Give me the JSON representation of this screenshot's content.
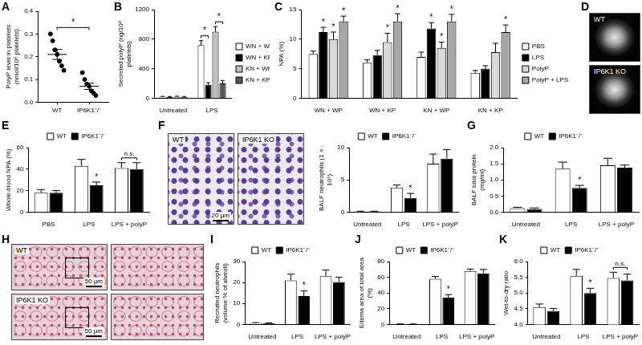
{
  "chart_data": [
    {
      "panel": "A",
      "type": "scatter",
      "y_label": "PolyP level in platelets (nmol/10⁸ platelets)",
      "categories": [
        "WT",
        "IP6K1⁻/⁻"
      ],
      "points": [
        [
          0.3,
          0.27,
          0.23,
          0.21,
          0.18,
          0.16,
          0.14
        ],
        [
          0.13,
          0.1,
          0.08,
          0.07,
          0.05,
          0.04,
          0.03
        ]
      ],
      "means": [
        0.21,
        0.07
      ],
      "errors": [
        0.022,
        0.014
      ],
      "color": "#000000",
      "ylim": [
        0,
        0.4
      ],
      "yticks": [
        {
          "value": 0,
          "label": "0.0"
        },
        0.1,
        0.2,
        0.3,
        0.4
      ],
      "grid": false,
      "brackets": [
        {
          "between": [
            "WT",
            "IP6K1⁻/⁻"
          ],
          "text": "*"
        }
      ]
    },
    {
      "panel": "B",
      "type": "bar",
      "y_label": "Secreted polyP (ng/10⁸ platelets)",
      "categories": [
        "Untreated",
        "LPS"
      ],
      "series": [
        {
          "name": "WN + WP",
          "color": "#ffffff",
          "values": [
            20,
            720
          ],
          "errors": [
            5,
            60
          ]
        },
        {
          "name": "WN + KP",
          "color": "#000000",
          "values": [
            18,
            180
          ],
          "errors": [
            5,
            30
          ]
        },
        {
          "name": "KN + WP",
          "color": "#bfbfbf",
          "values": [
            22,
            900
          ],
          "errors": [
            5,
            70
          ]
        },
        {
          "name": "KN + KP",
          "color": "#595959",
          "values": [
            18,
            200
          ],
          "errors": [
            5,
            40
          ]
        }
      ],
      "ylim": [
        0,
        1200
      ],
      "yticks": [
        0,
        400,
        800,
        1200
      ],
      "grid": false,
      "legend": "right",
      "brackets": [
        {
          "category": "LPS",
          "between": [
            "WN + WP",
            "WN + KP"
          ],
          "text": "*"
        },
        {
          "category": "LPS",
          "between": [
            "KN + WP",
            "KN + KP"
          ],
          "text": "*"
        }
      ]
    },
    {
      "panel": "C",
      "type": "bar",
      "y_label": "NPA (%)",
      "categories": [
        "WN + WP",
        "WN + KP",
        "KN + WP",
        "KN + KP"
      ],
      "series": [
        {
          "name": "PBS",
          "color": "#ffffff",
          "values": [
            7.5,
            6.0,
            7.0,
            4.3
          ],
          "errors": [
            0.5,
            0.5,
            0.8,
            0.4
          ]
        },
        {
          "name": "LPS",
          "color": "#000000",
          "values": [
            11.2,
            7.3,
            11.8,
            5.0
          ],
          "errors": [
            0.8,
            0.8,
            1.0,
            0.5
          ],
          "annotations": [
            "*",
            null,
            "*",
            null
          ]
        },
        {
          "name": "PolyP",
          "color": "#d9d9d9",
          "values": [
            10.0,
            9.5,
            8.5,
            7.8
          ],
          "errors": [
            1.2,
            1.5,
            1.0,
            1.5
          ],
          "annotations": [
            "*",
            "*",
            "*",
            null
          ]
        },
        {
          "name": "PolyP + LPS",
          "color": "#a6a6a6",
          "values": [
            13.0,
            13.0,
            13.0,
            11.2
          ],
          "errors": [
            0.9,
            1.3,
            1.2,
            1.2
          ],
          "annotations": [
            "*",
            "*",
            "*",
            "*"
          ]
        }
      ],
      "ylim": [
        0,
        15
      ],
      "yticks": [
        0,
        5,
        10,
        15
      ],
      "grid": false,
      "legend": "right"
    },
    {
      "panel": "E",
      "type": "bar",
      "y_label": "Whole-blood NPA (%)",
      "categories": [
        "PBS",
        "LPS",
        "LPS + polyP"
      ],
      "series": [
        {
          "name": "WT",
          "color": "#ffffff",
          "values": [
            18,
            43,
            41
          ],
          "errors": [
            3,
            6,
            5
          ]
        },
        {
          "name": "IP6K1⁻/⁻",
          "color": "#000000",
          "values": [
            18,
            25,
            40
          ],
          "errors": [
            2,
            3,
            6
          ],
          "annotations": [
            null,
            "*",
            null
          ]
        }
      ],
      "ylim": [
        0,
        60
      ],
      "yticks": [
        0,
        20,
        40,
        60
      ],
      "grid": false,
      "legend": "top",
      "brackets": [
        {
          "category": "LPS + polyP",
          "between": [
            "WT",
            "IP6K1⁻/⁻"
          ],
          "text": "n.s."
        }
      ]
    },
    {
      "type": "bar",
      "y_label": "BALF neutrophils (1 × 10⁵)",
      "categories": [
        "Untreated",
        "LPS",
        "LPS + polyP"
      ],
      "series": [
        {
          "name": "WT",
          "color": "#ffffff",
          "values": [
            0.1,
            3.8,
            7.5
          ],
          "errors": [
            0.05,
            0.4,
            1.5
          ]
        },
        {
          "name": "IP6K1⁻/⁻",
          "color": "#000000",
          "values": [
            0.1,
            2.2,
            8.3
          ],
          "errors": [
            0.05,
            0.7,
            1.4
          ],
          "annotations": [
            null,
            "*",
            null
          ]
        }
      ],
      "ylim": [
        0,
        10
      ],
      "yticks": [
        0,
        5,
        10
      ],
      "grid": false,
      "legend": "top"
    },
    {
      "type": "bar",
      "y_label": "BALF total protein (mg/ml)",
      "categories": [
        "Untreated",
        "LPS",
        "LPS + polyP"
      ],
      "series": [
        {
          "name": "WT",
          "color": "#ffffff",
          "values": [
            0.12,
            1.35,
            1.45
          ],
          "errors": [
            0.03,
            0.2,
            0.22
          ]
        },
        {
          "name": "IP6K1⁻/⁻",
          "color": "#000000",
          "values": [
            0.1,
            0.75,
            1.38
          ],
          "errors": [
            0.03,
            0.08,
            0.08
          ],
          "annotations": [
            null,
            "*",
            null
          ]
        }
      ],
      "ylim": [
        0,
        2
      ],
      "yticks": [
        {
          "value": 0,
          "label": "0.0"
        },
        0.5,
        {
          "value": 1,
          "label": "1.0"
        },
        1.5,
        {
          "value": 2,
          "label": "2.0"
        }
      ],
      "grid": false,
      "legend": "top",
      "panel": "G"
    },
    {
      "panel": "I",
      "type": "bar",
      "y_label": "Recruited neutrophils (volume % of alveoli)",
      "categories": [
        "Untreated",
        "LPS",
        "LPS + polyP"
      ],
      "series": [
        {
          "name": "WT",
          "color": "#ffffff",
          "values": [
            0.6,
            21,
            23
          ],
          "errors": [
            0.3,
            3,
            3
          ]
        },
        {
          "name": "IP6K1⁻/⁻",
          "color": "#000000",
          "values": [
            0.5,
            13.5,
            20.2
          ],
          "errors": [
            0.3,
            2.5,
            2.3
          ],
          "annotations": [
            null,
            "*",
            null
          ]
        }
      ],
      "ylim": [
        0,
        30
      ],
      "yticks": [
        0,
        10,
        20,
        30
      ],
      "grid": false,
      "legend": "top"
    },
    {
      "panel": "J",
      "type": "bar",
      "y_label": "Edema area of total area (%)",
      "categories": [
        "Untreated",
        "LPS",
        "LPS + polyP"
      ],
      "series": [
        {
          "name": "WT",
          "color": "#ffffff",
          "values": [
            0.5,
            58,
            68
          ],
          "errors": [
            0.2,
            3,
            2.5
          ]
        },
        {
          "name": "IP6K1⁻/⁻",
          "color": "#000000",
          "values": [
            0.4,
            34,
            65
          ],
          "errors": [
            0.2,
            4,
            5
          ],
          "annotations": [
            null,
            "*",
            null
          ]
        }
      ],
      "ylim": [
        0,
        80
      ],
      "yticks": [
        0,
        20,
        40,
        60,
        80
      ],
      "grid": false,
      "legend": "top"
    },
    {
      "panel": "K",
      "type": "bar",
      "y_label": "Wet-to-dry ratio",
      "categories": [
        "Untreated",
        "LPS",
        "LPS + polyP"
      ],
      "series": [
        {
          "name": "WT",
          "color": "#ffffff",
          "values": [
            4.55,
            5.55,
            5.48
          ],
          "errors": [
            0.1,
            0.2,
            0.18
          ]
        },
        {
          "name": "IP6K1⁻/⁻",
          "color": "#000000",
          "values": [
            4.43,
            5.0,
            5.4
          ],
          "errors": [
            0.08,
            0.15,
            0.2
          ],
          "annotations": [
            null,
            "*",
            null
          ]
        }
      ],
      "ylim": [
        4,
        6
      ],
      "yticks": [
        {
          "value": 4,
          "label": "4.0"
        },
        4.5,
        {
          "value": 5,
          "label": "5.0"
        },
        5.5,
        {
          "value": 6,
          "label": "6.0"
        }
      ],
      "grid": false,
      "legend": "top",
      "brackets": [
        {
          "category": "LPS + polyP",
          "between": [
            "WT",
            "IP6K1⁻/⁻"
          ],
          "text": "n.s."
        }
      ]
    }
  ],
  "images": [
    {
      "panel": "D",
      "labels": [
        "WT",
        "IP6K1 KO"
      ]
    },
    {
      "panel": "F",
      "labels": [
        "WT",
        "IP6K1 KO"
      ],
      "scale_bar": "20 μm"
    },
    {
      "panel": "H",
      "labels": [
        "WT",
        "IP6K1 KO"
      ],
      "scale_bar": "50 μm"
    }
  ]
}
